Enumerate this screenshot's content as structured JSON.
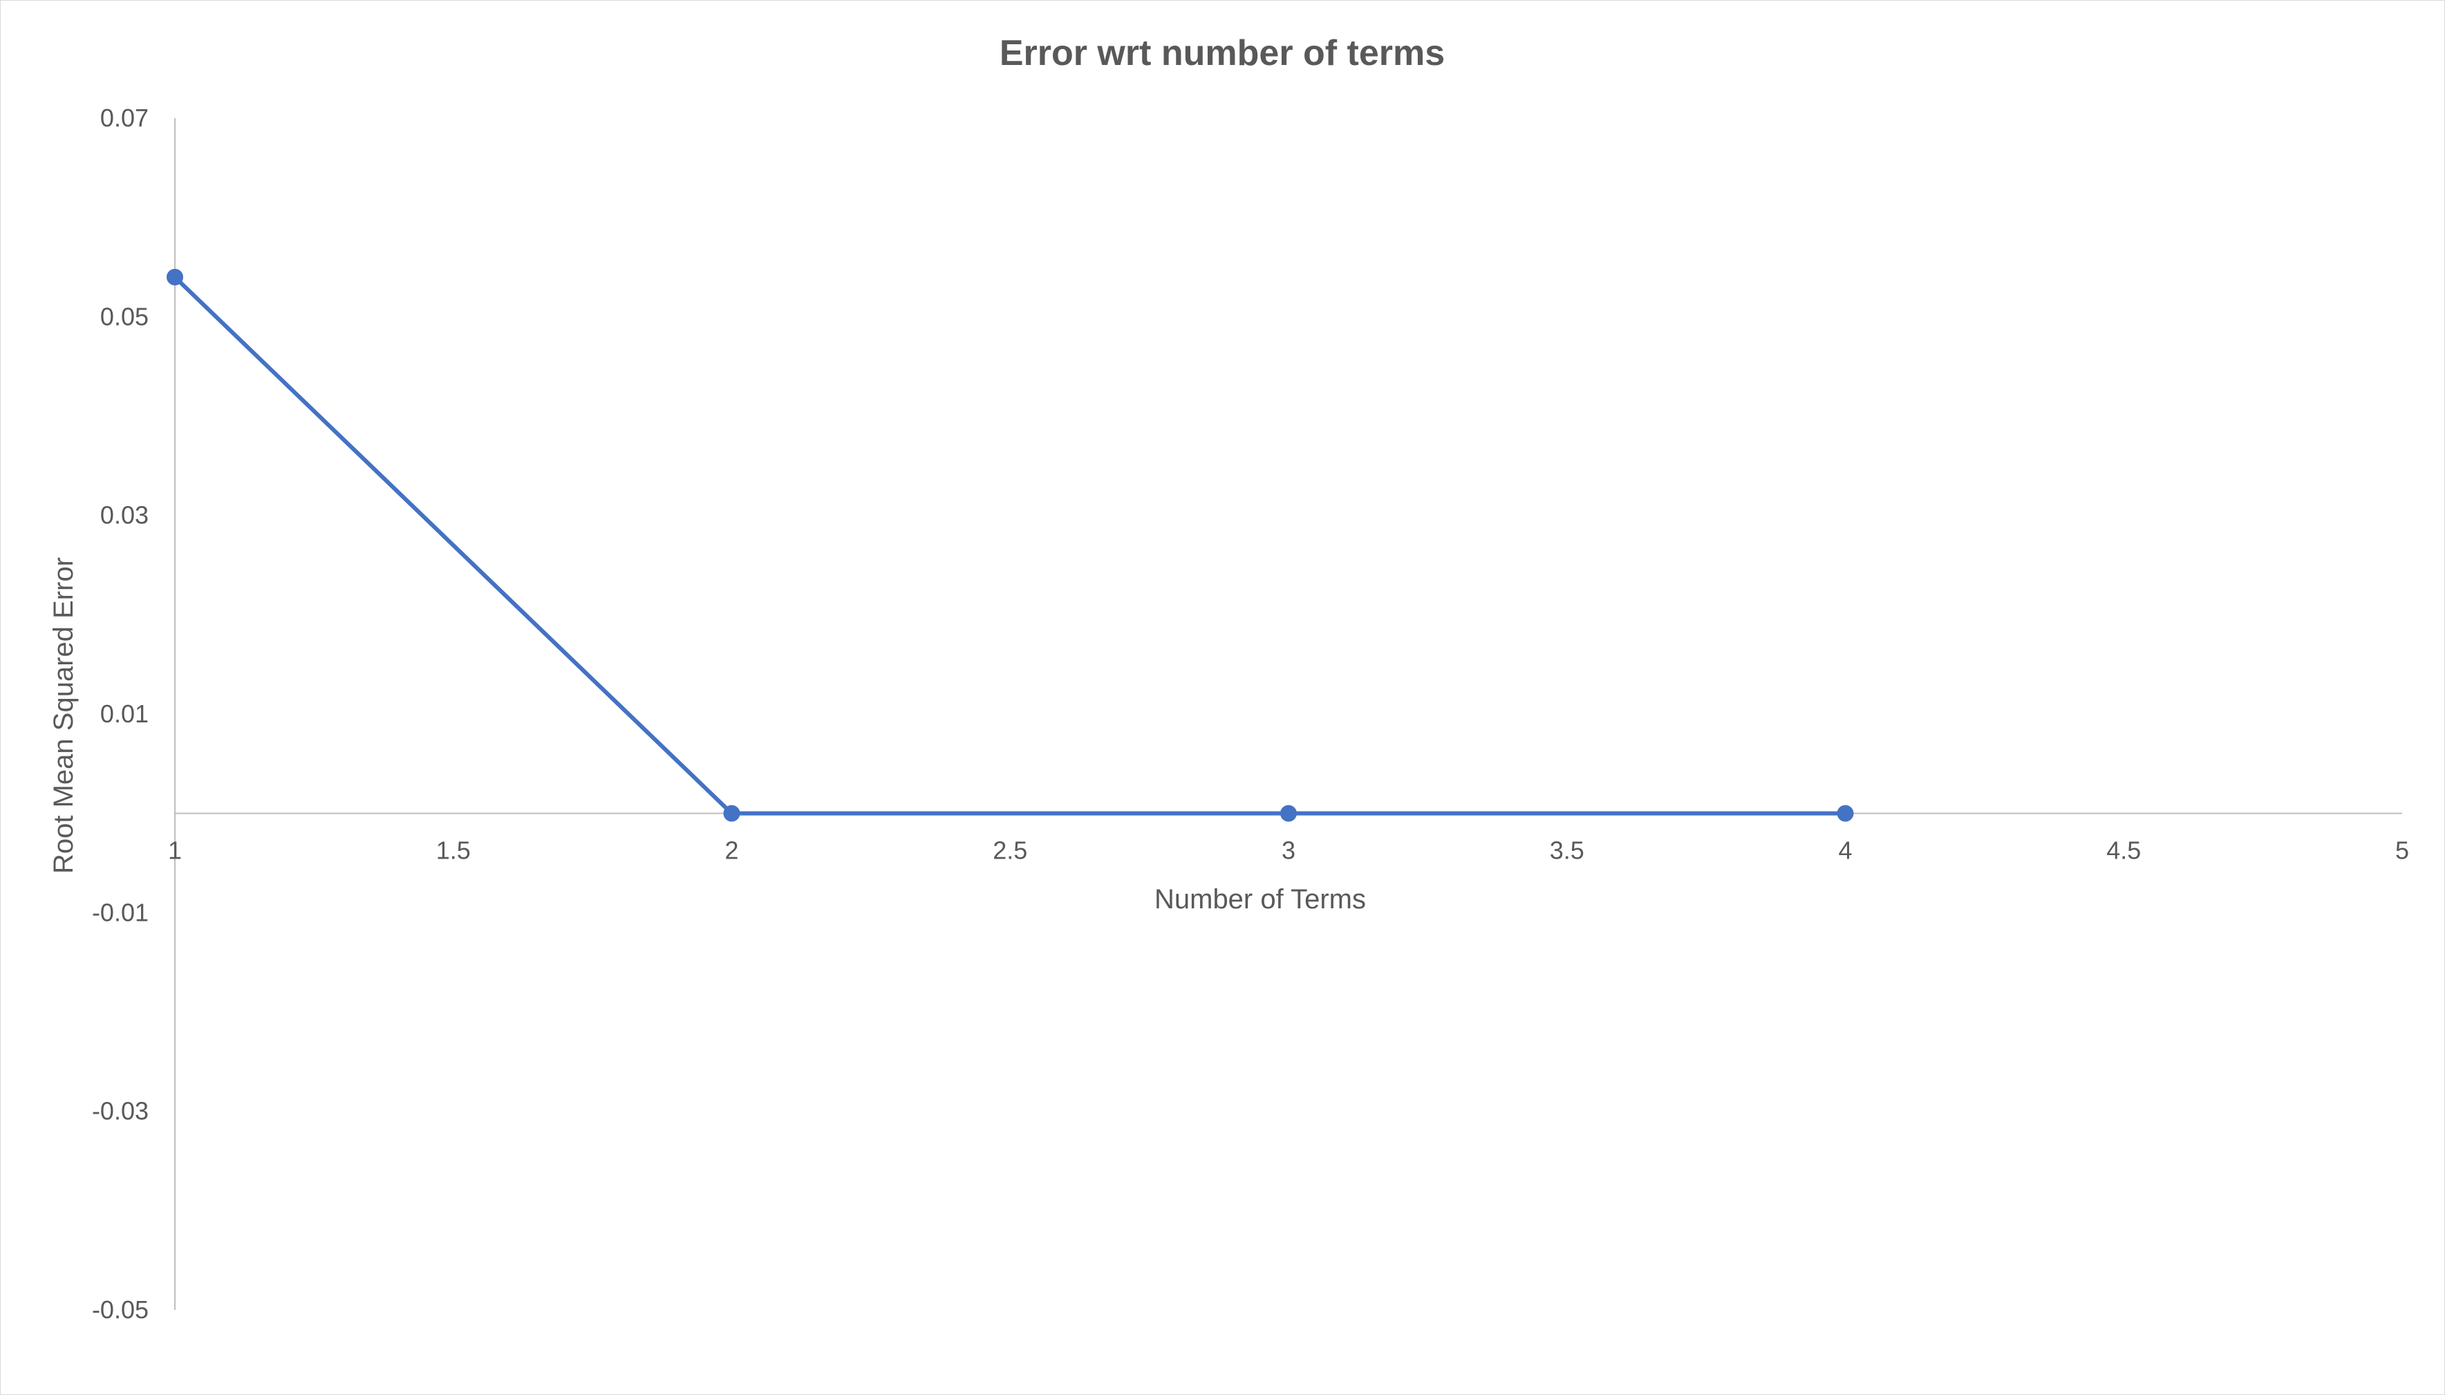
{
  "chart_data": {
    "type": "scatter",
    "title": "Error wrt number of terms",
    "xlabel": "Number of Terms",
    "ylabel": "Root Mean Squared Error",
    "xlim": [
      1,
      5
    ],
    "ylim": [
      -0.05,
      0.07
    ],
    "x_ticks": [
      "1",
      "1.5",
      "2",
      "2.5",
      "3",
      "3.5",
      "4",
      "4.5",
      "5"
    ],
    "y_ticks": [
      "0.07",
      "0.05",
      "0.03",
      "0.01",
      "-0.01",
      "-0.03",
      "-0.05"
    ],
    "grid": false,
    "legend": "none",
    "series": [
      {
        "color": "#4472c4",
        "x": [
          1,
          2,
          3,
          4
        ],
        "y": [
          0.054,
          0.0,
          0.0,
          0.0
        ],
        "markers": true,
        "lines": true
      }
    ]
  },
  "colors": {
    "text": "#595959",
    "axis": "#bfbfbf",
    "series": "#4472c4"
  }
}
